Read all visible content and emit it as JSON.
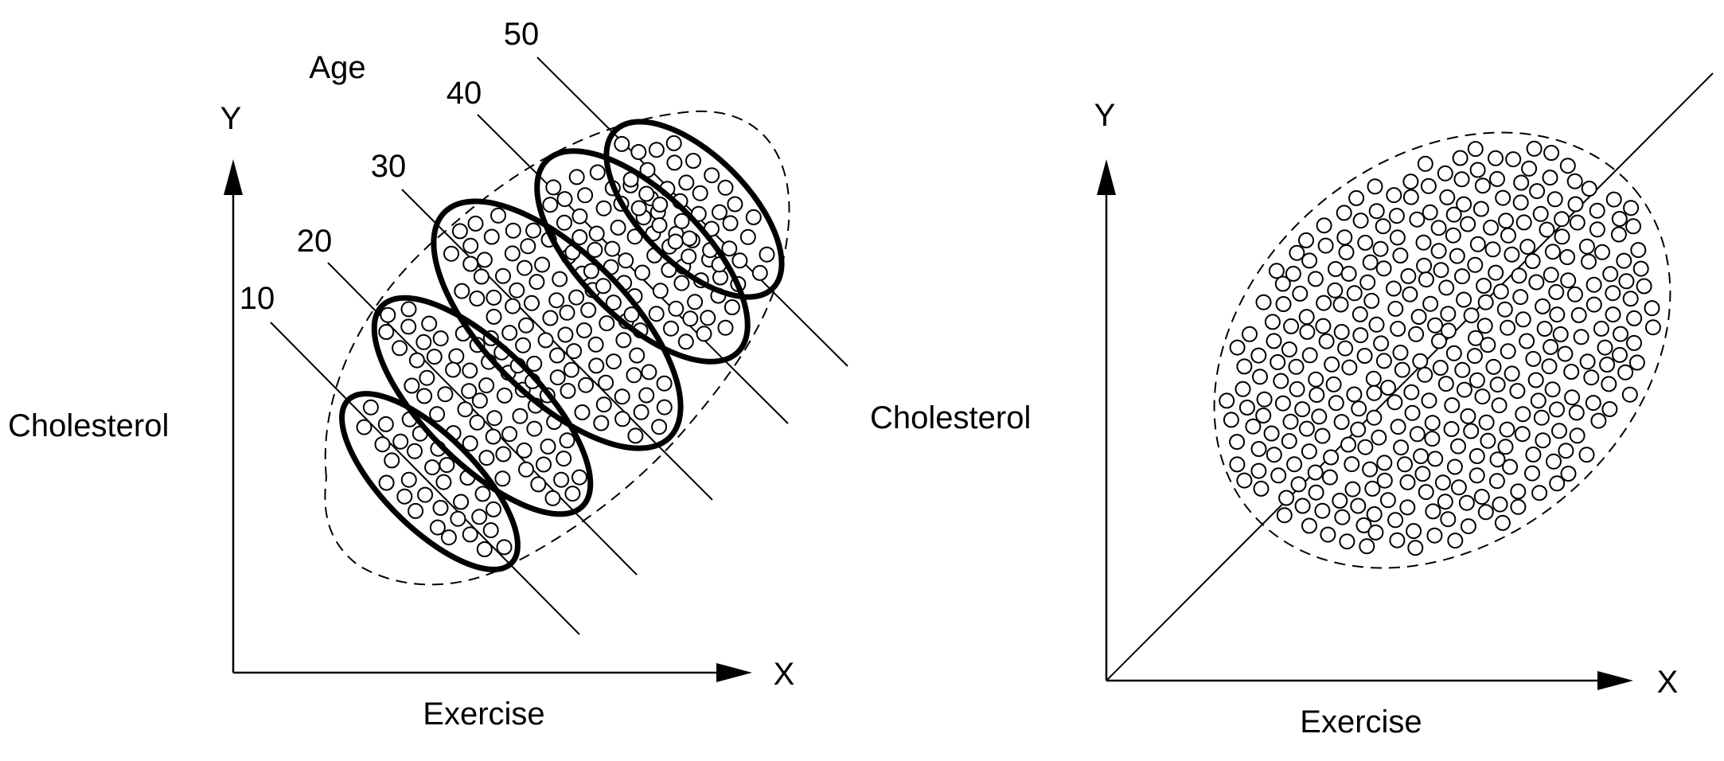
{
  "left_panel": {
    "y_axis_label": "Y",
    "x_axis_label": "X",
    "variable_y": "Cholesterol",
    "variable_x": "Exercise",
    "grouping_label": "Age",
    "groups": [
      "10",
      "20",
      "30",
      "40",
      "50"
    ]
  },
  "right_panel": {
    "y_axis_label": "Y",
    "x_axis_label": "X",
    "variable_y": "Cholesterol",
    "variable_x": "Exercise"
  }
}
